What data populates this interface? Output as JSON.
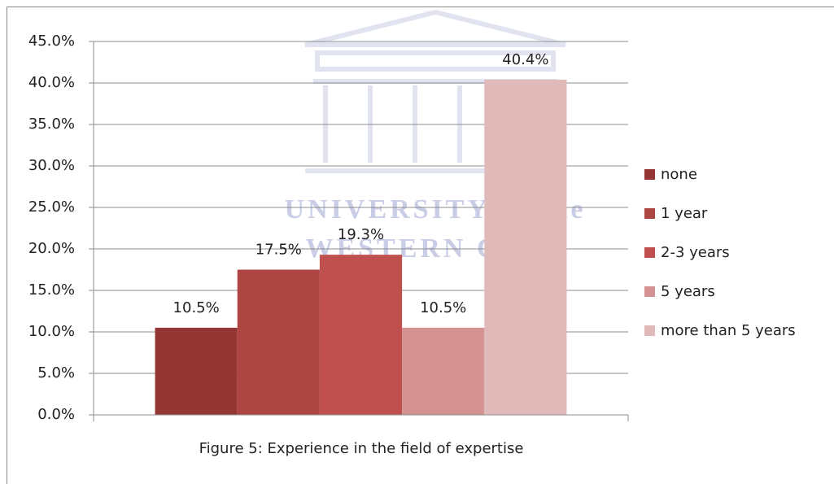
{
  "chart_data": {
    "type": "bar",
    "title": "Figure 5: Experience in the field of expertise",
    "watermark": [
      "UNIVERSITY of the",
      "WESTERN CAPE"
    ],
    "categories": [
      null
    ],
    "series": [
      {
        "name": "none",
        "color": "#943634",
        "values": [
          10.5
        ],
        "value_labels": [
          "10.5%"
        ]
      },
      {
        "name": "1 year",
        "color": "#ad4542",
        "values": [
          17.5
        ],
        "value_labels": [
          "17.5%"
        ]
      },
      {
        "name": "2-3 years",
        "color": "#c0504d",
        "values": [
          19.3
        ],
        "value_labels": [
          "19.3%"
        ]
      },
      {
        "name": "5 years",
        "color": "#d49392",
        "values": [
          10.5
        ],
        "value_labels": [
          "10.5%"
        ]
      },
      {
        "name": "more than 5 years",
        "color": "#e0b9b9",
        "values": [
          40.4
        ],
        "value_labels": [
          "40.4%"
        ]
      }
    ],
    "ylim": [
      0,
      45
    ],
    "yticks": [
      {
        "value": 0,
        "label": "0.0%"
      },
      {
        "value": 5,
        "label": "5.0%"
      },
      {
        "value": 10,
        "label": "10.0%"
      },
      {
        "value": 15,
        "label": "15.0%"
      },
      {
        "value": 20,
        "label": "20.0%"
      },
      {
        "value": 25,
        "label": "25.0%"
      },
      {
        "value": 30,
        "label": "30.0%"
      },
      {
        "value": 35,
        "label": "35.0%"
      },
      {
        "value": 40,
        "label": "40.0%"
      },
      {
        "value": 45,
        "label": "45.0%"
      }
    ],
    "grid": true,
    "legend": "right"
  }
}
